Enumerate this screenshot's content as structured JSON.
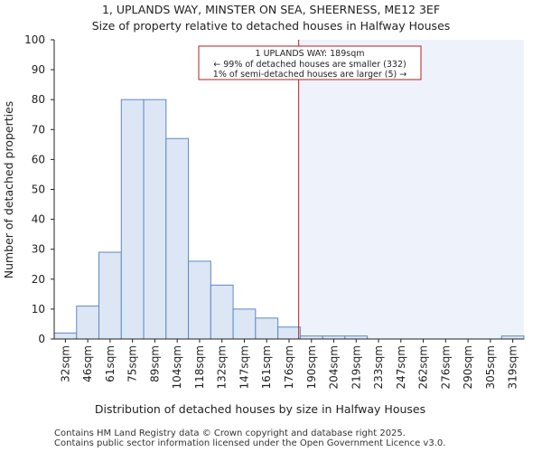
{
  "chart_data": {
    "type": "bar",
    "title": "1, UPLANDS WAY, MINSTER ON SEA, SHEERNESS, ME12 3EF",
    "subtitle": "Size of property relative to detached houses in Halfway Houses",
    "xlabel": "Distribution of detached houses by size in Halfway Houses",
    "ylabel": "Number of detached properties",
    "ylim": [
      0,
      100
    ],
    "yticks": [
      0,
      10,
      20,
      30,
      40,
      50,
      60,
      70,
      80,
      90,
      100
    ],
    "categories": [
      "32sqm",
      "46sqm",
      "61sqm",
      "75sqm",
      "89sqm",
      "104sqm",
      "118sqm",
      "132sqm",
      "147sqm",
      "161sqm",
      "176sqm",
      "190sqm",
      "204sqm",
      "219sqm",
      "233sqm",
      "247sqm",
      "262sqm",
      "276sqm",
      "290sqm",
      "305sqm",
      "319sqm"
    ],
    "values": [
      2,
      11,
      29,
      80,
      80,
      67,
      26,
      18,
      10,
      7,
      4,
      1,
      1,
      1,
      0,
      0,
      0,
      0,
      0,
      0,
      1
    ],
    "marker": {
      "value_sqm": 189,
      "bin_index": 10.93
    },
    "annotation": {
      "line1": "1 UPLANDS WAY: 189sqm",
      "line2": "← 99% of detached houses are smaller (332)",
      "line3": "1% of semi-detached houses are larger (5) →"
    },
    "colors": {
      "bar_fill": "#dce6f4",
      "bar_stroke": "#5b8ac4",
      "marker": "#b22222",
      "shade": "#eef2fb"
    }
  },
  "footer": {
    "line1": "Contains HM Land Registry data © Crown copyright and database right 2025.",
    "line2": "Contains public sector information licensed under the Open Government Licence v3.0."
  }
}
